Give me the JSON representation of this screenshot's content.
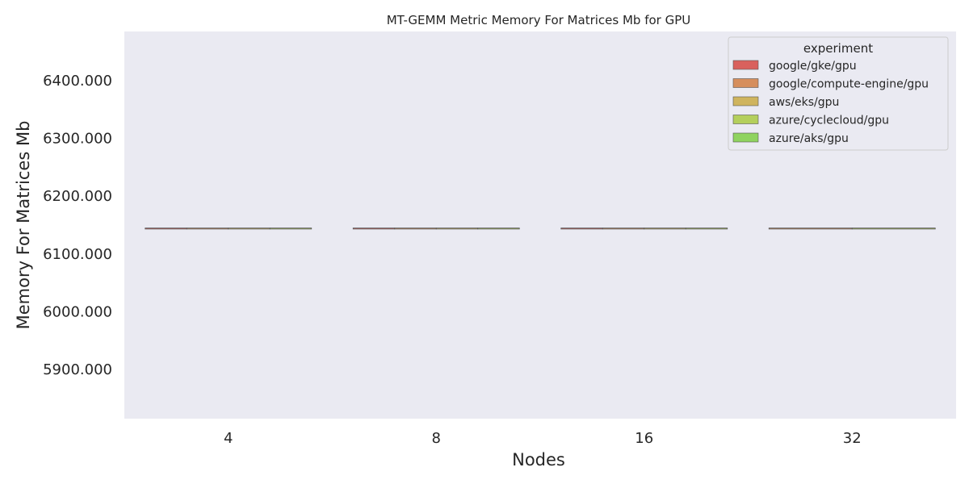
{
  "chart_data": {
    "type": "bar",
    "title": "MT-GEMM Metric Memory For Matrices Mb for GPU",
    "xlabel": "Nodes",
    "ylabel": "Memory For Matrices Mb",
    "categories": [
      "4",
      "8",
      "16",
      "32"
    ],
    "ylim": [
      5815,
      6485
    ],
    "yticks": [
      5900,
      6000,
      6100,
      6200,
      6300,
      6400
    ],
    "ytick_labels": [
      "5900.000",
      "6000.000",
      "6100.000",
      "6200.000",
      "6300.000",
      "6400.000"
    ],
    "grid": false,
    "legend_title": "experiment",
    "legend_position": "upper right",
    "series": [
      {
        "name": "google/gke/gpu",
        "color": "#d9615d",
        "values": [
          6144,
          6144,
          6144,
          null
        ]
      },
      {
        "name": "google/compute-engine/gpu",
        "color": "#d68e5d",
        "values": [
          6144,
          6144,
          6144,
          6144
        ]
      },
      {
        "name": "aws/eks/gpu",
        "color": "#cfb45e",
        "values": [
          6144,
          6144,
          6144,
          null
        ]
      },
      {
        "name": "azure/cyclecloud/gpu",
        "color": "#b4cf5c",
        "values": [
          6144,
          6144,
          6144,
          6144
        ]
      },
      {
        "name": "azure/aks/gpu",
        "color": "#8fd35f",
        "values": [
          null,
          null,
          null,
          null
        ]
      }
    ]
  }
}
